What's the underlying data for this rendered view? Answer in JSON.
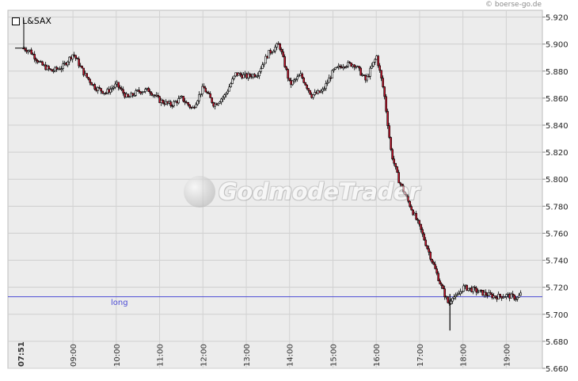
{
  "watermark_text": "GodmodeTrader",
  "copyright": "© boerse-go.de",
  "chart_data": {
    "type": "line",
    "style": "candlestick",
    "symbol": "L&SAX",
    "title": "",
    "xlabel": "",
    "ylabel": "",
    "ylim": [
      5660,
      5925
    ],
    "y_ticks": [
      "5.920",
      "5.900",
      "5.880",
      "5.860",
      "5.840",
      "5.820",
      "5.800",
      "5.780",
      "5.760",
      "5.740",
      "5.720",
      "5.700",
      "5.680",
      "5.660"
    ],
    "x_ticks": [
      "07:51",
      "09:00",
      "10:00",
      "11:00",
      "12:00",
      "13:00",
      "14:00",
      "15:00",
      "16:00",
      "17:00",
      "18:00",
      "19:00"
    ],
    "grid": true,
    "reference_line": {
      "label": "long",
      "value": 5713,
      "color": "#4b4bd6"
    },
    "series": [
      {
        "x": [
          "07:51",
          "08:00",
          "08:15",
          "08:30",
          "08:45",
          "09:00",
          "09:15",
          "09:30",
          "09:45",
          "10:00",
          "10:15",
          "10:30",
          "10:45",
          "11:00",
          "11:15",
          "11:30",
          "11:45",
          "12:00",
          "12:15",
          "12:30",
          "12:45",
          "13:00",
          "13:15",
          "13:30",
          "13:45",
          "14:00",
          "14:15",
          "14:30",
          "14:45",
          "15:00",
          "15:15",
          "15:30",
          "15:45",
          "16:00",
          "16:10",
          "16:20",
          "16:30",
          "16:45",
          "17:00",
          "17:15",
          "17:30",
          "17:40",
          "17:45",
          "17:50",
          "18:00",
          "18:15",
          "18:30",
          "18:45",
          "19:00",
          "19:15",
          "19:20"
        ],
        "values": [
          5897,
          5895,
          5885,
          5880,
          5883,
          5893,
          5878,
          5868,
          5864,
          5870,
          5860,
          5865,
          5866,
          5858,
          5855,
          5860,
          5852,
          5868,
          5855,
          5862,
          5878,
          5876,
          5878,
          5893,
          5900,
          5870,
          5877,
          5862,
          5865,
          5880,
          5885,
          5885,
          5873,
          5891,
          5865,
          5820,
          5800,
          5782,
          5764,
          5742,
          5720,
          5707,
          5714,
          5712,
          5720,
          5718,
          5715,
          5713,
          5714,
          5712,
          5715
        ]
      }
    ]
  }
}
